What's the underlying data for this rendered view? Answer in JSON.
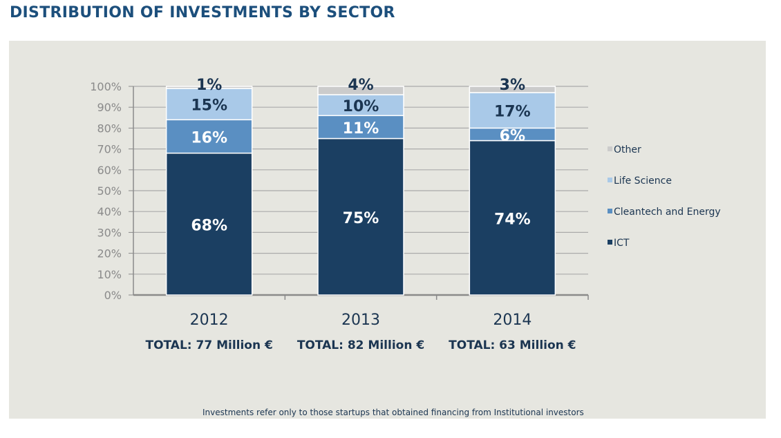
{
  "page": {
    "title": "DISTRIBUTION OF INVESTMENTS BY SECTOR",
    "footnote": "Investments refer only to those startups that obtained financing from Institutional investors"
  },
  "colors": {
    "ICT": "#1b3f62",
    "Cleantech and Energy": "#5a8fc2",
    "Life Science": "#a9c9e8",
    "Other": "#cbcbcb",
    "title": "#1c4f7c",
    "text": "#1b3551",
    "panel": "#e6e6e0",
    "grid": "#aaaaaa"
  },
  "chart_data": {
    "type": "bar",
    "stacked": true,
    "title": "DISTRIBUTION OF INVESTMENTS BY SECTOR",
    "categories": [
      "2012",
      "2013",
      "2014"
    ],
    "category_totals": [
      "TOTAL: 77 Million €",
      "TOTAL: 82 Million €",
      "TOTAL: 63 Million €"
    ],
    "series": [
      {
        "name": "ICT",
        "values": [
          68,
          75,
          74
        ],
        "labels": [
          "68%",
          "75%",
          "74%"
        ]
      },
      {
        "name": "Cleantech and Energy",
        "values": [
          16,
          11,
          6
        ],
        "labels": [
          "16%",
          "11%",
          "6%"
        ]
      },
      {
        "name": "Life Science",
        "values": [
          15,
          10,
          17
        ],
        "labels": [
          "15%",
          "10%",
          "17%"
        ]
      },
      {
        "name": "Other",
        "values": [
          1,
          4,
          3
        ],
        "labels": [
          "1%",
          "4%",
          "3%"
        ]
      }
    ],
    "ylim": [
      0,
      100
    ],
    "yticks": [
      "0%",
      "10%",
      "20%",
      "30%",
      "40%",
      "50%",
      "60%",
      "70%",
      "80%",
      "90%",
      "100%"
    ],
    "grid": true,
    "legend_position": "right",
    "legend_order": [
      "Other",
      "Life Science",
      "Cleantech and Energy",
      "ICT"
    ]
  }
}
